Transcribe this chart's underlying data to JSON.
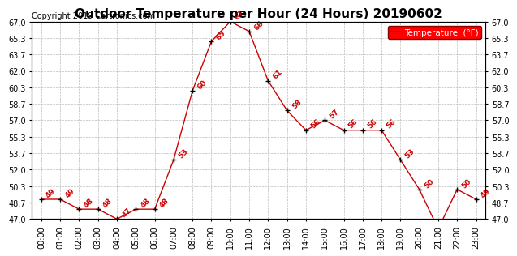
{
  "title": "Outdoor Temperature per Hour (24 Hours) 20190602",
  "copyright": "Copyright 2019 Cartronics.com",
  "legend_label": "Temperature  (°F)",
  "hours": [
    "00:00",
    "01:00",
    "02:00",
    "03:00",
    "04:00",
    "05:00",
    "06:00",
    "07:00",
    "08:00",
    "09:00",
    "10:00",
    "11:00",
    "12:00",
    "13:00",
    "14:00",
    "15:00",
    "16:00",
    "17:00",
    "18:00",
    "19:00",
    "20:00",
    "21:00",
    "22:00",
    "23:00"
  ],
  "temps": [
    49,
    49,
    48,
    48,
    47,
    48,
    48,
    53,
    60,
    65,
    67,
    66,
    61,
    58,
    56,
    57,
    56,
    56,
    56,
    53,
    50,
    46,
    50,
    49
  ],
  "line_color": "#cc0000",
  "marker_color": "#000000",
  "label_color": "#cc0000",
  "bg_color": "#ffffff",
  "grid_color": "#bbbbbb",
  "ylim_min": 47.0,
  "ylim_max": 67.0,
  "yticks": [
    47.0,
    48.7,
    50.3,
    52.0,
    53.7,
    55.3,
    57.0,
    58.7,
    60.3,
    62.0,
    63.7,
    65.3,
    67.0
  ],
  "title_fontsize": 11,
  "copyright_fontsize": 7,
  "label_fontsize": 6.5,
  "tick_fontsize": 7,
  "legend_fontsize": 7.5
}
